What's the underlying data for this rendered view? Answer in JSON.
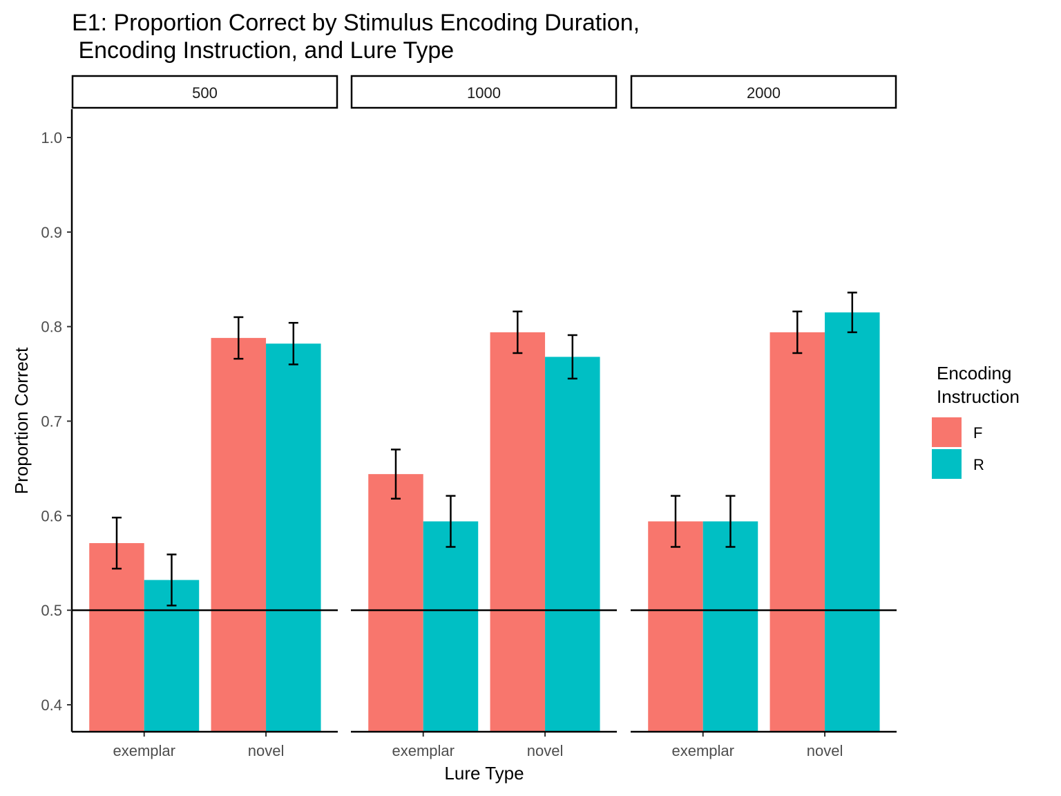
{
  "chart_data": {
    "type": "bar",
    "title_line1": "E1: Proportion Correct by Stimulus Encoding Duration,",
    "title_line2": " Encoding Instruction, and Lure Type",
    "xlabel": "Lure Type",
    "ylabel": "Proportion Correct",
    "ylim": [
      0.37,
      1.03
    ],
    "yticks": [
      "0.4",
      "0.5",
      "0.6",
      "0.7",
      "0.8",
      "0.9",
      "1.0"
    ],
    "reference_line": 0.5,
    "grid": false,
    "legend": {
      "title_line1": "Encoding",
      "title_line2": "Instruction",
      "position": "right",
      "items": [
        {
          "label": "F",
          "color": "#F8766D"
        },
        {
          "label": "R",
          "color": "#00BFC4"
        }
      ]
    },
    "categories": [
      "exemplar",
      "novel"
    ],
    "facets": [
      {
        "label": "500",
        "series": [
          {
            "name": "F",
            "values": [
              0.571,
              0.788
            ],
            "ci_low": [
              0.544,
              0.766
            ],
            "ci_high": [
              0.598,
              0.81
            ]
          },
          {
            "name": "R",
            "values": [
              0.532,
              0.782
            ],
            "ci_low": [
              0.505,
              0.76
            ],
            "ci_high": [
              0.559,
              0.804
            ]
          }
        ]
      },
      {
        "label": "1000",
        "series": [
          {
            "name": "F",
            "values": [
              0.644,
              0.794
            ],
            "ci_low": [
              0.618,
              0.772
            ],
            "ci_high": [
              0.67,
              0.816
            ]
          },
          {
            "name": "R",
            "values": [
              0.594,
              0.768
            ],
            "ci_low": [
              0.567,
              0.745
            ],
            "ci_high": [
              0.621,
              0.791
            ]
          }
        ]
      },
      {
        "label": "2000",
        "series": [
          {
            "name": "F",
            "values": [
              0.594,
              0.794
            ],
            "ci_low": [
              0.567,
              0.772
            ],
            "ci_high": [
              0.621,
              0.816
            ]
          },
          {
            "name": "R",
            "values": [
              0.594,
              0.815
            ],
            "ci_low": [
              0.567,
              0.794
            ],
            "ci_high": [
              0.621,
              0.836
            ]
          }
        ]
      }
    ]
  }
}
